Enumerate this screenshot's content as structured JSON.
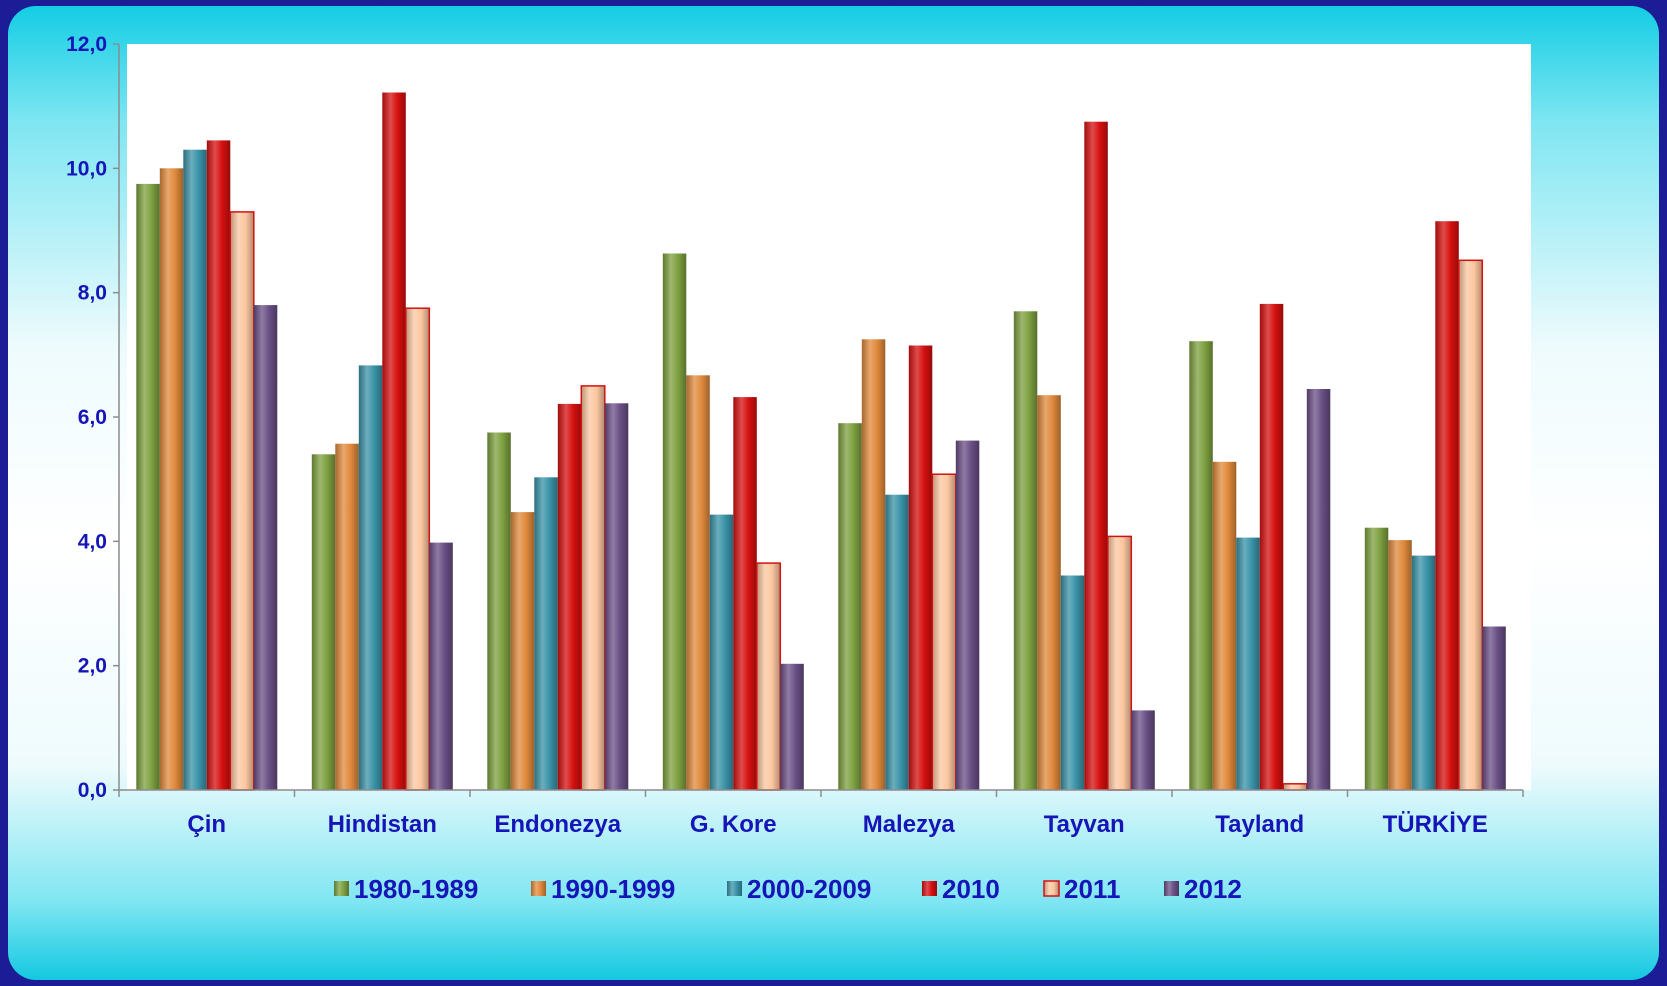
{
  "chart_data": {
    "type": "bar",
    "categories": [
      "Çin",
      "Hindistan",
      "Endonezya",
      "G. Kore",
      "Malezya",
      "Tayvan",
      "Tayland",
      "TÜRKİYE"
    ],
    "series": [
      {
        "name": "1980-1989",
        "color": "#7ea040",
        "values": [
          9.75,
          5.4,
          5.75,
          8.63,
          5.9,
          7.7,
          7.22,
          4.22
        ]
      },
      {
        "name": "1990-1999",
        "color": "#e08a3c",
        "values": [
          10.0,
          5.57,
          4.47,
          6.67,
          7.25,
          6.35,
          5.28,
          4.02
        ]
      },
      {
        "name": "2000-2009",
        "color": "#3a93a8",
        "values": [
          10.3,
          6.83,
          5.03,
          4.43,
          4.75,
          3.45,
          4.06,
          3.77
        ]
      },
      {
        "name": "2010",
        "color": "#d61010",
        "values": [
          10.45,
          11.22,
          6.21,
          6.32,
          7.15,
          10.75,
          7.82,
          9.15
        ]
      },
      {
        "name": "2011",
        "color": "#fbc7a0",
        "values": [
          9.3,
          7.75,
          6.5,
          3.65,
          5.08,
          4.08,
          0.1,
          8.52
        ]
      },
      {
        "name": "2012",
        "color": "#6a4f86",
        "values": [
          7.8,
          3.98,
          6.22,
          2.03,
          5.62,
          1.28,
          6.45,
          2.63
        ]
      }
    ],
    "yticks": [
      "0,0",
      "2,0",
      "4,0",
      "6,0",
      "8,0",
      "10,0",
      "12,0"
    ],
    "ylim": [
      0,
      12
    ],
    "grid": false,
    "legend_position": "bottom"
  }
}
